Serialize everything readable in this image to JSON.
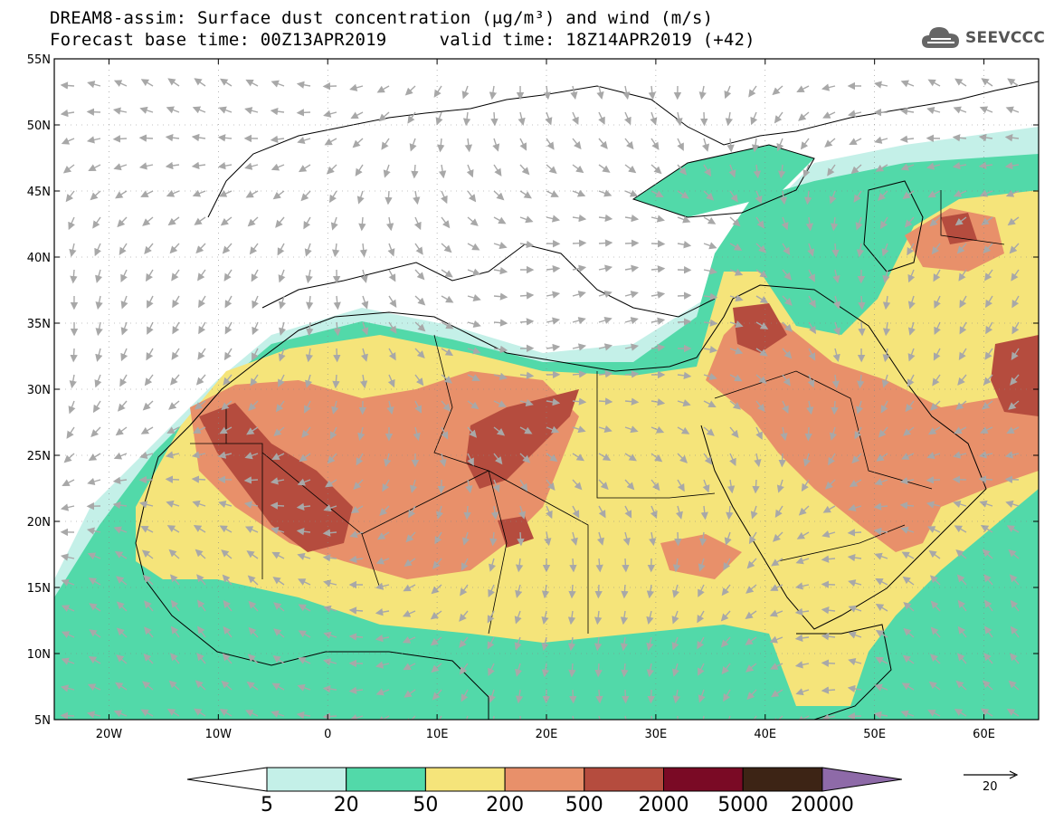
{
  "title": {
    "line1": "DREAM8-assim: Surface dust concentration (μg/m³) and wind (m/s)",
    "line2": "Forecast base time: 00Z13APR2019     valid time: 18Z14APR2019 (+42)"
  },
  "logo": {
    "text": "SEEVCCC",
    "icon": "cloud-icon"
  },
  "axes": {
    "lat_labels": [
      "55N",
      "50N",
      "45N",
      "40N",
      "35N",
      "30N",
      "25N",
      "20N",
      "15N",
      "10N",
      "5N"
    ],
    "lon_labels": [
      "20W",
      "10W",
      "0",
      "10E",
      "20E",
      "30E",
      "40E",
      "50E",
      "60E"
    ],
    "lat_range": [
      5,
      55
    ],
    "lon_range": [
      -25,
      65
    ]
  },
  "colorbar": {
    "thresholds": [
      "5",
      "20",
      "50",
      "200",
      "500",
      "2000",
      "5000",
      "20000"
    ],
    "colors": [
      "#ffffff",
      "#c4f0e8",
      "#52d9a9",
      "#f5e47a",
      "#e8906a",
      "#b54c3e",
      "#7a0a25",
      "#3d2415",
      "#8e6aa8"
    ]
  },
  "reference_vector": {
    "label": "20"
  }
}
